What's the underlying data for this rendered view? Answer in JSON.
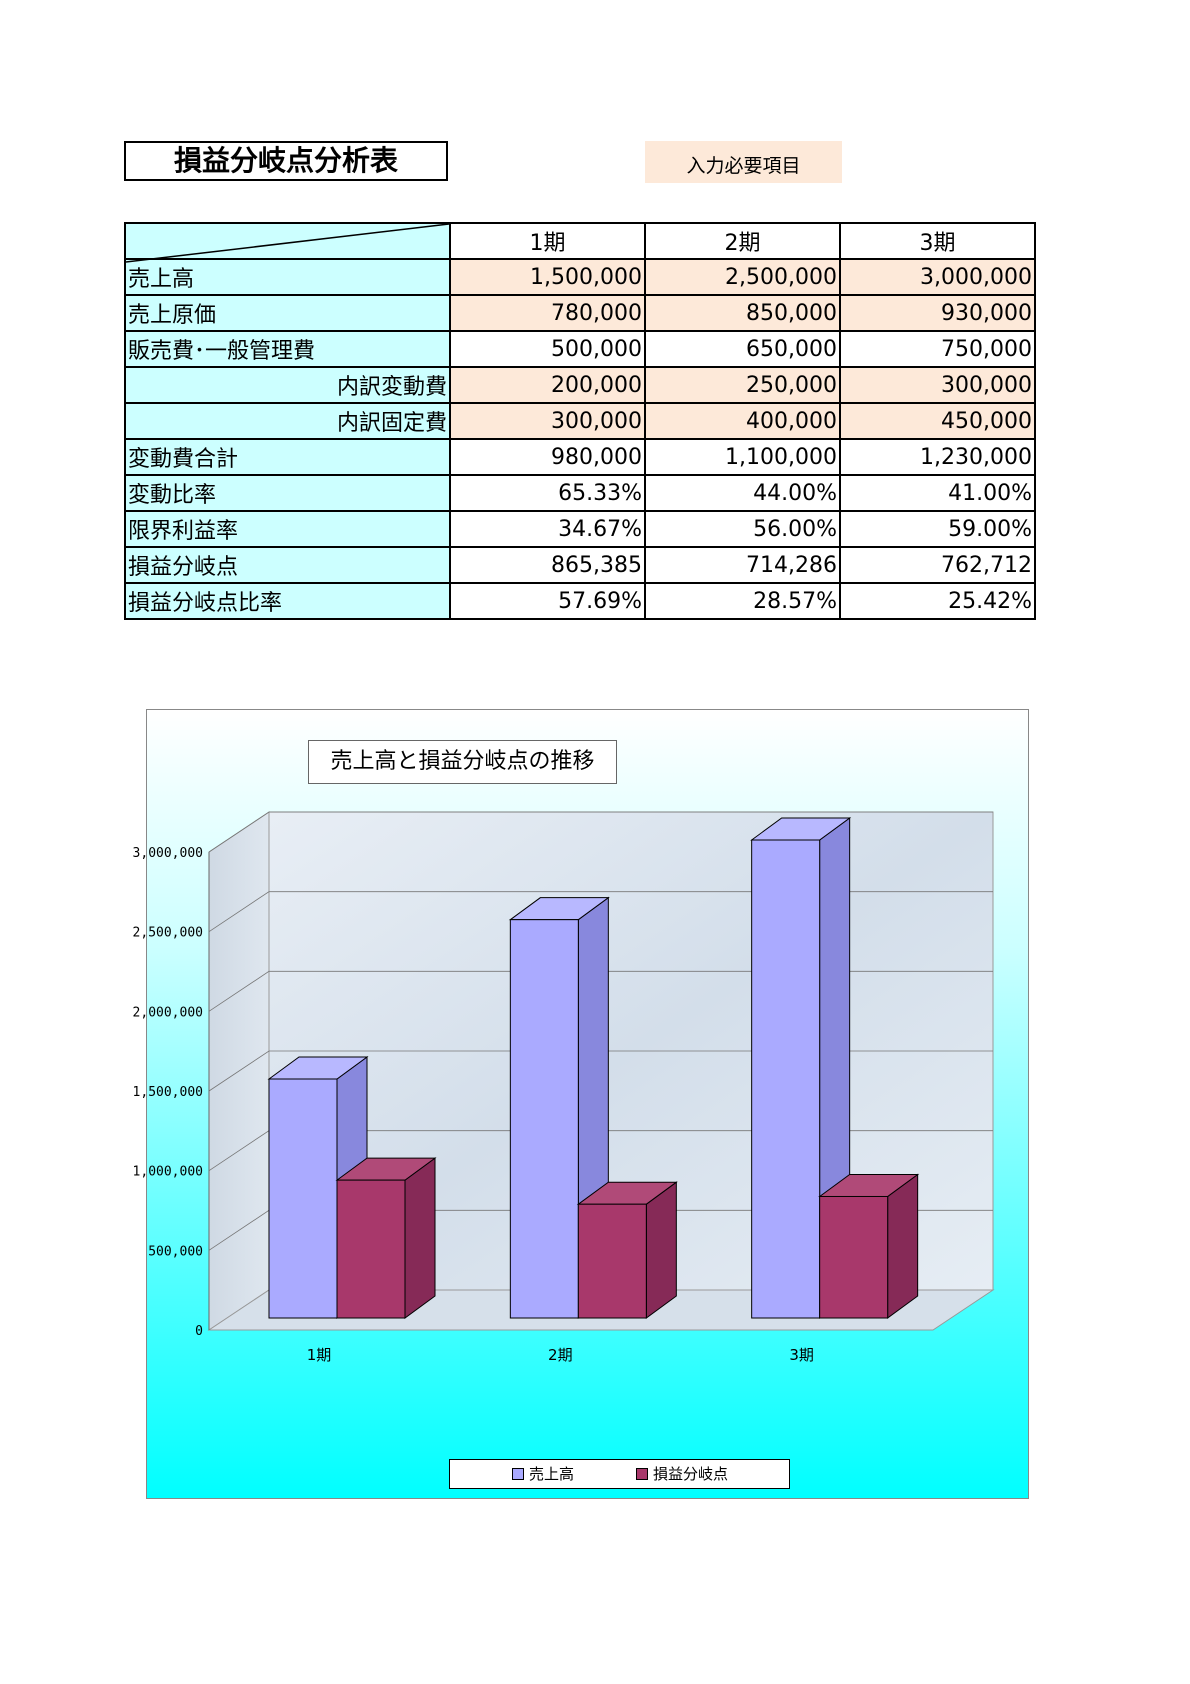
{
  "title": "損益分岐点分析表",
  "input_note": "入力必要項目",
  "table": {
    "columns": [
      "1期",
      "2期",
      "3期"
    ],
    "rows": [
      {
        "label": "売上高",
        "values": [
          "1,500,000",
          "2,500,000",
          "3,000,000"
        ],
        "input": true,
        "indent": false
      },
      {
        "label": "売上原価",
        "values": [
          "780,000",
          "850,000",
          "930,000"
        ],
        "input": true,
        "indent": false
      },
      {
        "label": "販売費･一般管理費",
        "values": [
          "500,000",
          "650,000",
          "750,000"
        ],
        "input": false,
        "indent": false
      },
      {
        "label": "内訳変動費",
        "values": [
          "200,000",
          "250,000",
          "300,000"
        ],
        "input": true,
        "indent": true
      },
      {
        "label": "内訳固定費",
        "values": [
          "300,000",
          "400,000",
          "450,000"
        ],
        "input": true,
        "indent": true
      },
      {
        "label": "変動費合計",
        "values": [
          "980,000",
          "1,100,000",
          "1,230,000"
        ],
        "input": false,
        "indent": false
      },
      {
        "label": "変動比率",
        "values": [
          "65.33%",
          "44.00%",
          "41.00%"
        ],
        "input": false,
        "indent": false
      },
      {
        "label": "限界利益率",
        "values": [
          "34.67%",
          "56.00%",
          "59.00%"
        ],
        "input": false,
        "indent": false
      },
      {
        "label": "損益分岐点",
        "values": [
          "865,385",
          "714,286",
          "762,712"
        ],
        "input": false,
        "indent": false
      },
      {
        "label": "損益分岐点比率",
        "values": [
          "57.69%",
          "28.57%",
          "25.42%"
        ],
        "input": false,
        "indent": false
      }
    ]
  },
  "chart_data": {
    "type": "bar",
    "title": "売上高と損益分岐点の推移",
    "categories": [
      "1期",
      "2期",
      "3期"
    ],
    "series": [
      {
        "name": "売上高",
        "values": [
          1500000,
          2500000,
          3000000
        ],
        "color": "#aaaaff",
        "side_color": "#8888dd",
        "top_color": "#b8b8ff"
      },
      {
        "name": "損益分岐点",
        "values": [
          865385,
          714286,
          762712
        ],
        "color": "#a8386b",
        "side_color": "#862a57",
        "top_color": "#b04a78"
      }
    ],
    "ylim": [
      0,
      3000000
    ],
    "yticks": [
      "0",
      "500,000",
      "1,000,000",
      "1,500,000",
      "2,000,000",
      "2,500,000",
      "3,000,000"
    ],
    "ytick_values": [
      0,
      500000,
      1000000,
      1500000,
      2000000,
      2500000,
      3000000
    ],
    "grid": true,
    "legend": "bottom"
  }
}
